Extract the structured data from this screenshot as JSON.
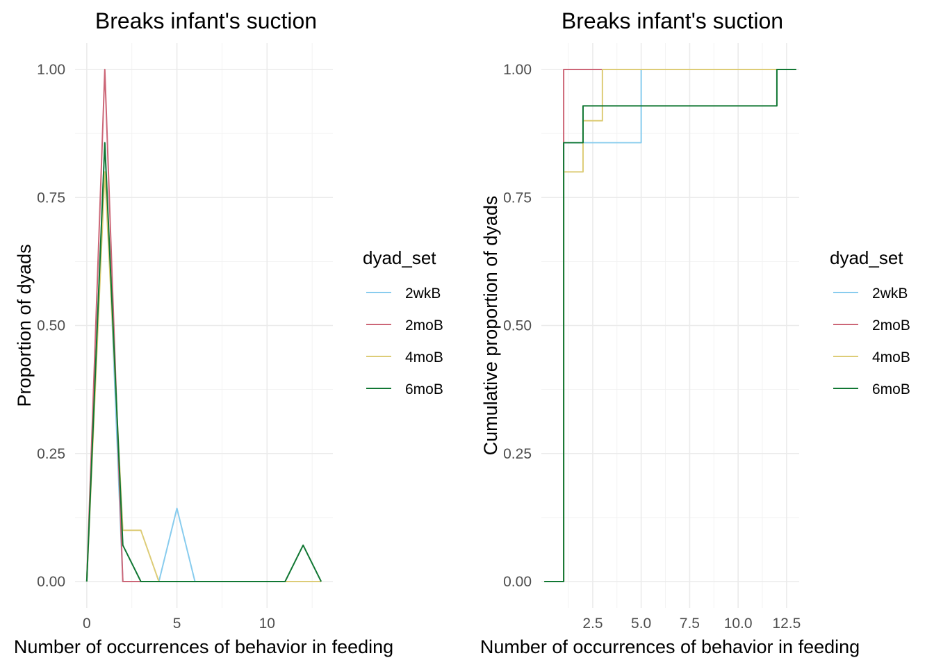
{
  "colors": {
    "2wkB": "#88CCEE",
    "2moB": "#CC6677",
    "4moB": "#DDCC77",
    "6moB": "#117733"
  },
  "chart_data": [
    {
      "type": "line",
      "title": "Breaks infant's suction",
      "xlabel": "Number of occurrences of behavior in feeding",
      "ylabel": "Proportion of dyads",
      "xlim": [
        -0.65,
        13.65
      ],
      "ylim": [
        -0.05,
        1.05
      ],
      "x_ticks": [
        0,
        5,
        10
      ],
      "x_tick_labels": [
        "0",
        "5",
        "10"
      ],
      "y_ticks": [
        0,
        0.25,
        0.5,
        0.75,
        1
      ],
      "y_tick_labels": [
        "0.00",
        "0.25",
        "0.50",
        "0.75",
        "1.00"
      ],
      "grid": true,
      "legend": {
        "title": "dyad_set",
        "position": "right"
      },
      "series": [
        {
          "name": "2wkB",
          "color": "#88CCEE",
          "x": [
            0,
            1,
            2,
            3,
            4,
            5,
            6
          ],
          "y": [
            0,
            0.857,
            0,
            0,
            0,
            0.143,
            0
          ]
        },
        {
          "name": "2moB",
          "color": "#CC6677",
          "x": [
            0,
            1,
            2,
            3
          ],
          "y": [
            0,
            1,
            0,
            0
          ]
        },
        {
          "name": "4moB",
          "color": "#DDCC77",
          "x": [
            0,
            1,
            2,
            3,
            4,
            5,
            6,
            7,
            8,
            9,
            10,
            11,
            12,
            13
          ],
          "y": [
            0,
            0.8,
            0.1,
            0.1,
            0,
            0,
            0,
            0,
            0,
            0,
            0,
            0,
            0,
            0
          ]
        },
        {
          "name": "6moB",
          "color": "#117733",
          "x": [
            0,
            1,
            2,
            3,
            4,
            5,
            6,
            7,
            8,
            9,
            10,
            11,
            12,
            13
          ],
          "y": [
            0,
            0.857,
            0.071,
            0,
            0,
            0,
            0,
            0,
            0,
            0,
            0,
            0,
            0.071,
            0
          ]
        }
      ]
    },
    {
      "type": "line",
      "title": "Breaks infant's suction",
      "xlabel": "Number of occurrences of behavior in feeding",
      "ylabel": "Cumulative proportion of dyads",
      "xlim": [
        -0.15,
        13.15
      ],
      "ylim": [
        -0.05,
        1.05
      ],
      "x_ticks": [
        2.5,
        5,
        7.5,
        10,
        12.5
      ],
      "x_tick_labels": [
        "2.5",
        "5.0",
        "7.5",
        "10.0",
        "12.5"
      ],
      "y_ticks": [
        0,
        0.25,
        0.5,
        0.75,
        1
      ],
      "y_tick_labels": [
        "0.00",
        "0.25",
        "0.50",
        "0.75",
        "1.00"
      ],
      "grid": true,
      "step": true,
      "legend": {
        "title": "dyad_set",
        "position": "right"
      },
      "series": [
        {
          "name": "2wkB",
          "color": "#88CCEE",
          "x": [
            0,
            1,
            5
          ],
          "y": [
            0,
            0.857,
            1
          ]
        },
        {
          "name": "2moB",
          "color": "#CC6677",
          "x": [
            0,
            1,
            3
          ],
          "y": [
            0,
            1,
            1
          ]
        },
        {
          "name": "4moB",
          "color": "#DDCC77",
          "x": [
            0,
            1,
            2,
            3,
            12
          ],
          "y": [
            0,
            0.8,
            0.9,
            1,
            1
          ]
        },
        {
          "name": "6moB",
          "color": "#117733",
          "x": [
            0,
            1,
            2,
            12
          ],
          "y": [
            0,
            0.857,
            0.929,
            1
          ]
        }
      ]
    }
  ]
}
